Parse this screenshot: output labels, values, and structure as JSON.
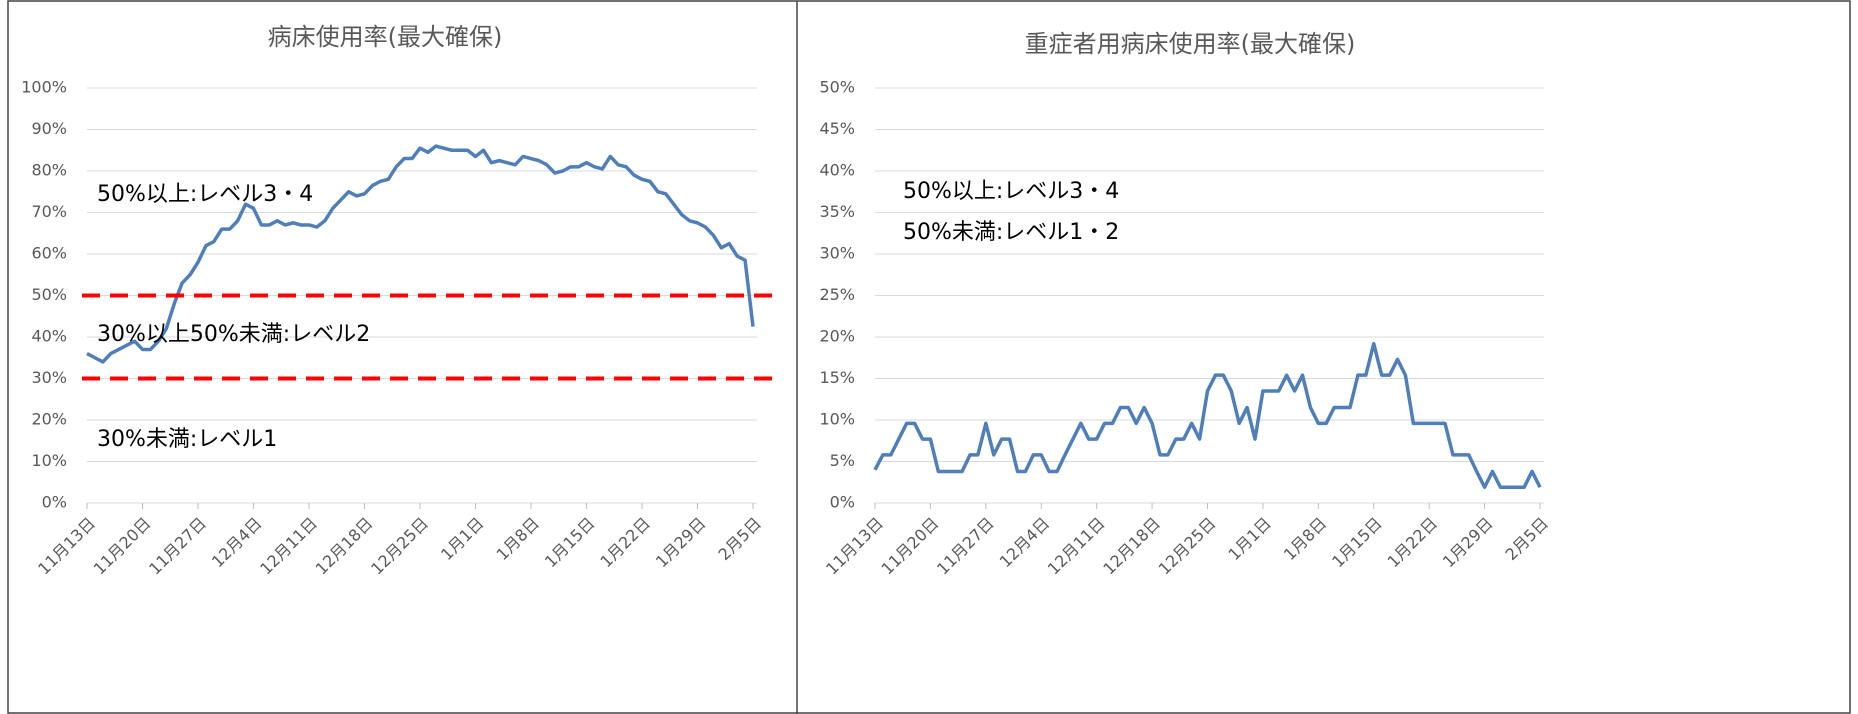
{
  "chart_data": [
    {
      "type": "line",
      "title": "病床使用率(最大確保)",
      "categories": [
        "11月13日",
        null,
        null,
        null,
        null,
        null,
        null,
        "11月20日",
        null,
        null,
        null,
        null,
        null,
        null,
        "11月27日",
        null,
        null,
        null,
        null,
        null,
        null,
        "12月4日",
        null,
        null,
        null,
        null,
        null,
        null,
        "12月11日",
        null,
        null,
        null,
        null,
        null,
        null,
        "12月18日",
        null,
        null,
        null,
        null,
        null,
        null,
        "12月25日",
        null,
        null,
        null,
        null,
        null,
        null,
        "1月1日",
        null,
        null,
        null,
        null,
        null,
        null,
        "1月8日",
        null,
        null,
        null,
        null,
        null,
        null,
        "1月15日",
        null,
        null,
        null,
        null,
        null,
        null,
        "1月22日",
        null,
        null,
        null,
        null,
        null,
        null,
        "1月29日",
        null,
        null,
        null,
        null,
        null,
        null,
        "2月5日"
      ],
      "series": [
        {
          "color": "#4f7eb8",
          "values": [
            36,
            35,
            34,
            36,
            37,
            38,
            39,
            37,
            37,
            39,
            42,
            48,
            53,
            55,
            58,
            62,
            63,
            66,
            66,
            68,
            72,
            71,
            67,
            67,
            68,
            67,
            67.5,
            67,
            67,
            66.5,
            68,
            71,
            73,
            75,
            74,
            74.5,
            76.5,
            77.5,
            78,
            81,
            83,
            83,
            85.5,
            84.5,
            86,
            85.5,
            85,
            85,
            85,
            83.5,
            85,
            82,
            82.5,
            82,
            81.5,
            83.5,
            83,
            82.5,
            81.5,
            79.5,
            80,
            81,
            81,
            82,
            81,
            80.5,
            83.5,
            81.5,
            81,
            79,
            78,
            77.5,
            75,
            74.5,
            72,
            69.5,
            68,
            67.5,
            66.5,
            64.5,
            61.5,
            62.5,
            59.5,
            58.5,
            42.5
          ]
        }
      ],
      "ylim": [
        0,
        100
      ],
      "yticks": [
        {
          "value": 0,
          "label": "0%"
        },
        {
          "value": 10,
          "label": "10%"
        },
        {
          "value": 20,
          "label": "20%"
        },
        {
          "value": 30,
          "label": "30%"
        },
        {
          "value": 40,
          "label": "40%"
        },
        {
          "value": 50,
          "label": "50%"
        },
        {
          "value": 60,
          "label": "60%"
        },
        {
          "value": 70,
          "label": "70%"
        },
        {
          "value": 80,
          "label": "80%"
        },
        {
          "value": 90,
          "label": "90%"
        },
        {
          "value": 100,
          "label": "100%"
        }
      ],
      "grid": true,
      "reference_lines": [
        {
          "value": 50,
          "color": "#ff0000"
        },
        {
          "value": 30,
          "color": "#ff0000"
        }
      ],
      "annotations": [
        "50%以上:レベル3・4",
        "30%以上50%未満:レベル2",
        "30%未満:レベル1"
      ]
    },
    {
      "type": "line",
      "title": "重症者用病床使用率(最大確保)",
      "categories": [
        "11月13日",
        null,
        null,
        null,
        null,
        null,
        null,
        "11月20日",
        null,
        null,
        null,
        null,
        null,
        null,
        "11月27日",
        null,
        null,
        null,
        null,
        null,
        null,
        "12月4日",
        null,
        null,
        null,
        null,
        null,
        null,
        "12月11日",
        null,
        null,
        null,
        null,
        null,
        null,
        "12月18日",
        null,
        null,
        null,
        null,
        null,
        null,
        "12月25日",
        null,
        null,
        null,
        null,
        null,
        null,
        "1月1日",
        null,
        null,
        null,
        null,
        null,
        null,
        "1月8日",
        null,
        null,
        null,
        null,
        null,
        null,
        "1月15日",
        null,
        null,
        null,
        null,
        null,
        null,
        "1月22日",
        null,
        null,
        null,
        null,
        null,
        null,
        "1月29日",
        null,
        null,
        null,
        null,
        null,
        null,
        "2月5日"
      ],
      "series": [
        {
          "color": "#4f7eb8",
          "values": [
            4,
            5.8,
            5.8,
            7.7,
            9.6,
            9.6,
            7.7,
            7.7,
            3.8,
            3.8,
            3.8,
            3.8,
            5.8,
            5.8,
            9.6,
            5.8,
            7.7,
            7.7,
            3.8,
            3.8,
            5.8,
            5.8,
            3.8,
            3.8,
            5.8,
            7.7,
            9.6,
            7.7,
            7.7,
            9.6,
            9.6,
            11.5,
            11.5,
            9.6,
            11.5,
            9.6,
            5.8,
            5.8,
            7.7,
            7.7,
            9.6,
            7.7,
            13.5,
            15.4,
            15.4,
            13.5,
            9.6,
            11.5,
            7.7,
            13.5,
            13.5,
            13.5,
            15.4,
            13.5,
            15.4,
            11.5,
            9.6,
            9.6,
            11.5,
            11.5,
            11.5,
            15.4,
            15.4,
            19.2,
            15.4,
            15.4,
            17.3,
            15.4,
            9.6,
            9.6,
            9.6,
            9.6,
            9.6,
            5.8,
            5.8,
            5.8,
            3.8,
            1.9,
            3.8,
            1.9,
            1.9,
            1.9,
            1.9,
            3.8,
            1.9
          ]
        }
      ],
      "ylim": [
        0,
        50
      ],
      "yticks": [
        {
          "value": 0,
          "label": "0%"
        },
        {
          "value": 5,
          "label": "5%"
        },
        {
          "value": 10,
          "label": "10%"
        },
        {
          "value": 15,
          "label": "15%"
        },
        {
          "value": 20,
          "label": "20%"
        },
        {
          "value": 25,
          "label": "25%"
        },
        {
          "value": 30,
          "label": "30%"
        },
        {
          "value": 35,
          "label": "35%"
        },
        {
          "value": 40,
          "label": "40%"
        },
        {
          "value": 45,
          "label": "45%"
        },
        {
          "value": 50,
          "label": "50%"
        }
      ],
      "grid": true,
      "annotations": [
        "50%以上:レベル3・4",
        "50%未満:レベル1・2"
      ]
    }
  ]
}
